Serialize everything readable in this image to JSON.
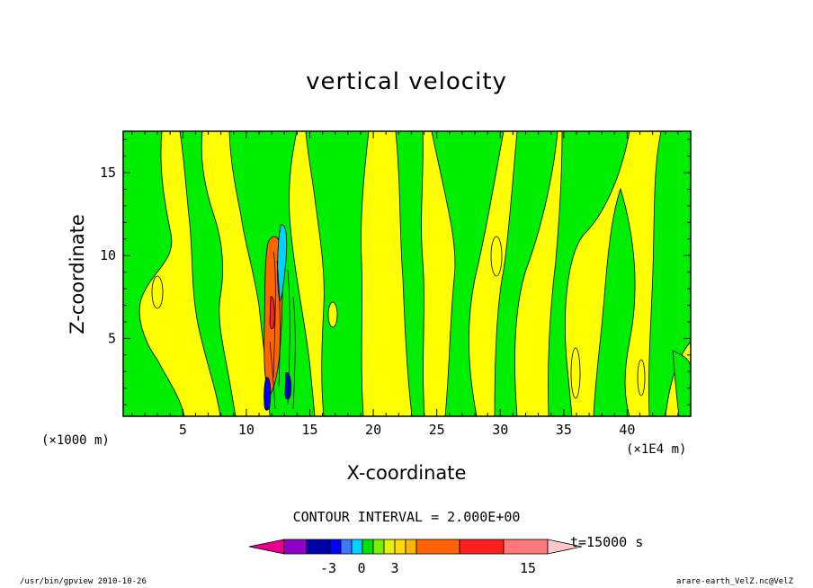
{
  "chart_data": {
    "type": "heatmap",
    "title": "vertical velocity",
    "xlabel": "X-coordinate",
    "ylabel": "Z-coordinate",
    "x_unit_note": "(×1000 m)",
    "x_unit_note_right": "(×1E4 m)",
    "xlim": [
      0.3,
      45
    ],
    "ylim": [
      0.3,
      17.5
    ],
    "xticks": [
      5,
      10,
      15,
      20,
      25,
      30,
      35,
      40
    ],
    "yticks": [
      5,
      10,
      15
    ],
    "contour_interval": "CONTOUR INTERVAL = 2.000E+00",
    "time": "t=15000 s",
    "colorbar": {
      "labeled_ticks": [
        "-3",
        "0",
        "3",
        "15"
      ],
      "colors": [
        "#e6008c",
        "#8c00c8",
        "#0000aa",
        "#0000ff",
        "#3c78ff",
        "#00d2ff",
        "#00e100",
        "#78f000",
        "#e6f000",
        "#ffdc00",
        "#ffb400",
        "#ff6400",
        "#ff1e1e",
        "#ff7878",
        "#ffc8c8"
      ]
    },
    "fields": {
      "positive_color": "#ffff00",
      "negative_color": "#00ee00",
      "strong_up_color": "#ff6600",
      "strong_down_color": "#0000ee"
    }
  },
  "footer": {
    "left": "/usr/bin/gpview  2010-10-26",
    "right": "arare-earth_VelZ.nc@VelZ"
  }
}
